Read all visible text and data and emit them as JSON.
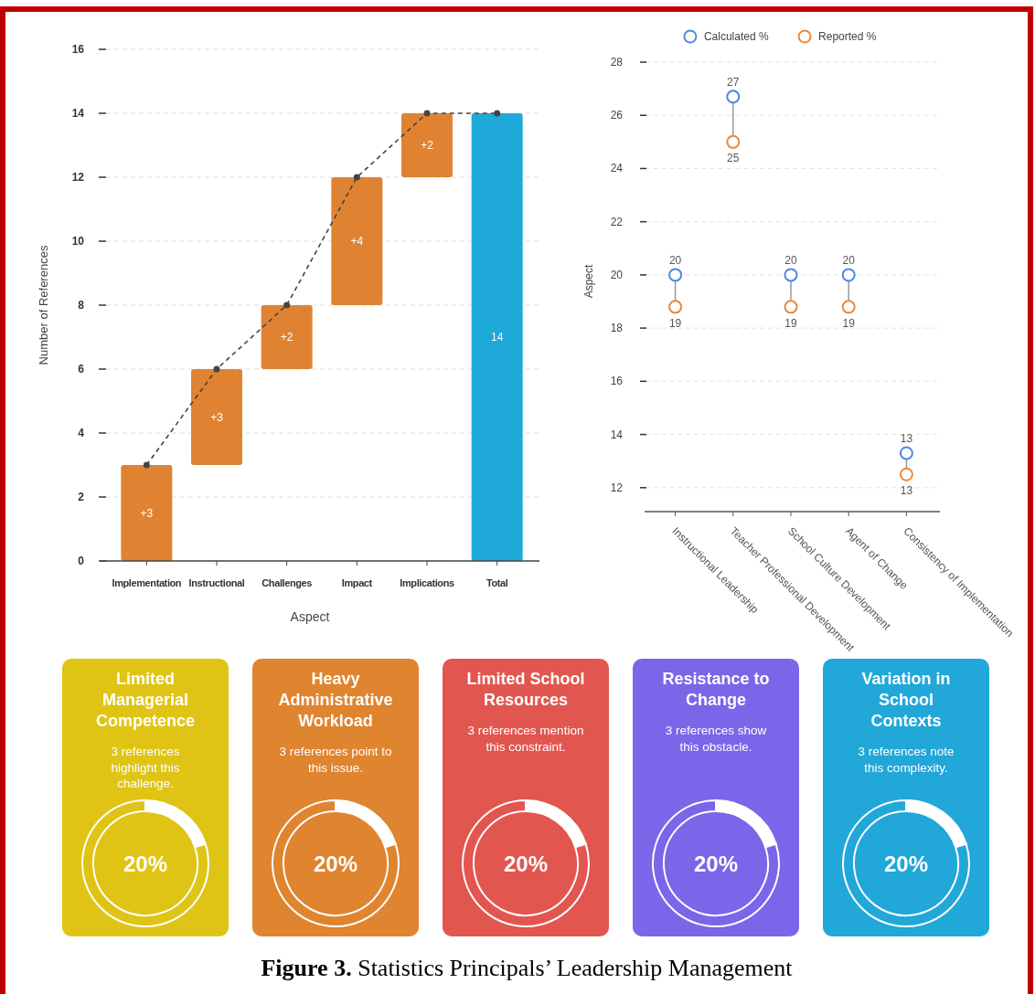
{
  "chart_data": [
    {
      "type": "bar",
      "xlabel": "Aspect",
      "ylabel": "Number of References",
      "categories": [
        "Implementation",
        "Instructional",
        "Challenges",
        "Impact",
        "Implications",
        "Total"
      ],
      "series": [
        {
          "type": "bar",
          "values": [
            3,
            3,
            2,
            4,
            2,
            14
          ],
          "base": [
            0,
            3,
            6,
            8,
            12,
            0
          ],
          "colors": [
            "#df8333",
            "#df8333",
            "#df8333",
            "#df8333",
            "#df8333",
            "#1fa9d9"
          ],
          "value_labels": [
            "+3",
            "+3",
            "+2",
            "+4",
            "+2",
            "14"
          ]
        },
        {
          "type": "line",
          "values": [
            3,
            6,
            8,
            12,
            14,
            14
          ],
          "color": "#444444",
          "line_style": "dashed",
          "marker": "circle"
        }
      ],
      "ylim": [
        0,
        16
      ],
      "yticks": [
        0,
        2,
        4,
        6,
        8,
        10,
        12,
        14,
        16
      ],
      "grid": "y",
      "annotations": [
        "Figure 3.",
        "Statistics Principals’ Leadership Management"
      ]
    },
    {
      "type": "scatter",
      "ylabel": "Aspect",
      "categories": [
        "Instructional Leadership",
        "Teacher Professional Development",
        "School Culture Development",
        "Agent of Change",
        "Consistency of Implementation"
      ],
      "series": [
        {
          "name": "Calculated %",
          "color": "#4f86e8",
          "values": [
            20,
            26.7,
            20,
            20,
            13.3
          ],
          "value_labels": [
            "20",
            "27",
            "20",
            "20",
            "13"
          ]
        },
        {
          "name": "Reported %",
          "color": "#e8893a",
          "values": [
            18.8,
            25,
            18.8,
            18.8,
            12.5
          ],
          "value_labels": [
            "19",
            "25",
            "19",
            "19",
            "13"
          ]
        }
      ],
      "marker": "circle",
      "ylim": [
        11.1,
        28
      ],
      "yticks": [
        12,
        14,
        16,
        18,
        20,
        22,
        24,
        26,
        28
      ],
      "grid": "y",
      "legend": "top"
    },
    {
      "type": "donut",
      "title": "Limited Managerial Competence",
      "subtitle": "3 references highlight this challenge.",
      "categories": [
        null,
        null
      ],
      "values": [
        20,
        80
      ],
      "colors": [
        "#ffffff",
        "#dfc416"
      ],
      "annotations": [
        "20%"
      ]
    },
    {
      "type": "donut",
      "title": "Heavy Administrative Workload",
      "subtitle": "3 references point to this issue.",
      "categories": [
        null,
        null
      ],
      "values": [
        20,
        80
      ],
      "colors": [
        "#ffffff",
        "#df842f"
      ],
      "annotations": [
        "20%"
      ]
    },
    {
      "type": "donut",
      "title": "Limited School Resources",
      "subtitle": "3 references mention this constraint.",
      "categories": [
        null,
        null
      ],
      "values": [
        20,
        80
      ],
      "colors": [
        "#ffffff",
        "#e25650"
      ],
      "annotations": [
        "20%"
      ]
    },
    {
      "type": "donut",
      "title": "Resistance to Change",
      "subtitle": "3 references show this obstacle.",
      "categories": [
        null,
        null
      ],
      "values": [
        20,
        80
      ],
      "colors": [
        "#ffffff",
        "#7b65e8"
      ],
      "annotations": [
        "20%"
      ]
    },
    {
      "type": "donut",
      "title": "Variation in School Contexts",
      "subtitle": "3 references note this complexity.",
      "categories": [
        null,
        null
      ],
      "values": [
        20,
        80
      ],
      "colors": [
        "#ffffff",
        "#21a7d8"
      ],
      "annotations": [
        "20%"
      ]
    }
  ]
}
